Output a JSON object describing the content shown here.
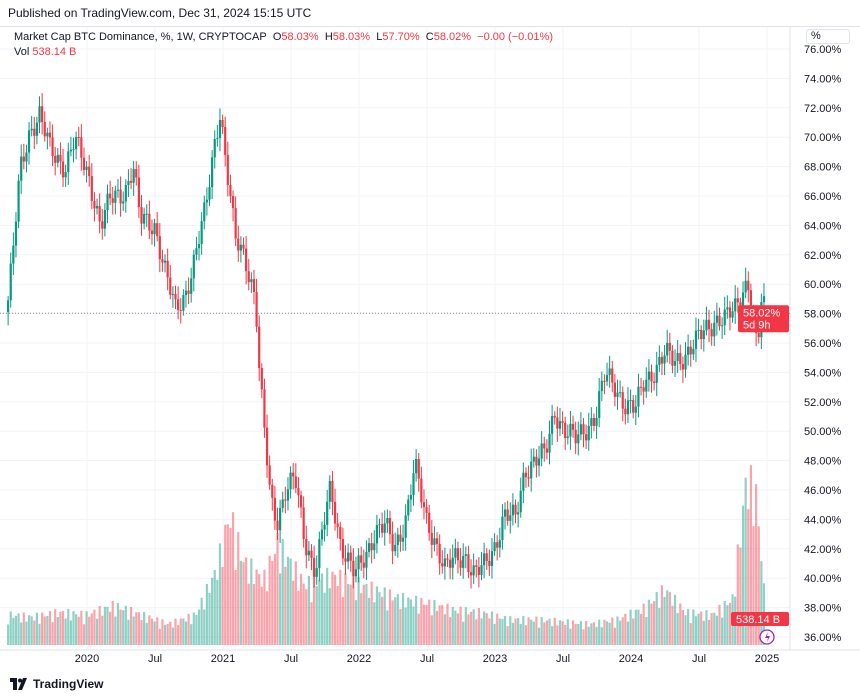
{
  "published": "Published on TradingView.com, Dec 31, 2024 15:15 UTC",
  "legend": {
    "title": "Market Cap BTC Dominance, %, 1W, CRYPTOCAP",
    "o_label": "O",
    "o": "58.03%",
    "h_label": "H",
    "h": "58.03%",
    "l_label": "L",
    "l": "57.70%",
    "c_label": "C",
    "c": "58.02%",
    "change": "−0.00 (−0.01%)",
    "vol_label": "Vol",
    "vol": "538.14 B"
  },
  "scale_mode": "%",
  "footer": "TradingView",
  "colors": {
    "up": "#089981",
    "down": "#f23645"
  },
  "chart_data": {
    "type": "candlestick",
    "title": "Market Cap BTC Dominance, %, 1W, CRYPTOCAP",
    "ylim": [
      36,
      76
    ],
    "y_ticks": [
      "76.00%",
      "74.00%",
      "72.00%",
      "70.00%",
      "68.00%",
      "66.00%",
      "64.00%",
      "62.00%",
      "60.00%",
      "58.00%",
      "56.00%",
      "54.00%",
      "52.00%",
      "50.00%",
      "48.00%",
      "46.00%",
      "44.00%",
      "42.00%",
      "40.00%",
      "38.00%",
      "36.00%"
    ],
    "x_ticks": [
      {
        "label": "2020",
        "t": 2020.0
      },
      {
        "label": "Jul",
        "t": 2020.5
      },
      {
        "label": "2021",
        "t": 2021.0
      },
      {
        "label": "Jul",
        "t": 2021.5
      },
      {
        "label": "2022",
        "t": 2022.0
      },
      {
        "label": "Jul",
        "t": 2022.5
      },
      {
        "label": "2023",
        "t": 2023.0
      },
      {
        "label": "Jul",
        "t": 2023.5
      },
      {
        "label": "2024",
        "t": 2024.0
      },
      {
        "label": "Jul",
        "t": 2024.5
      },
      {
        "label": "2025",
        "t": 2025.0
      }
    ],
    "last_price": "58.02%",
    "countdown": "5d 9h",
    "last_volume": "538.14 B",
    "close_keypoints": [
      [
        2019.42,
        58.9
      ],
      [
        2019.45,
        61.6
      ],
      [
        2019.51,
        67.8
      ],
      [
        2019.58,
        70.5
      ],
      [
        2019.65,
        71.5
      ],
      [
        2019.73,
        69.1
      ],
      [
        2019.84,
        68
      ],
      [
        2019.91,
        69.8
      ],
      [
        2020.02,
        67.1
      ],
      [
        2020.1,
        64
      ],
      [
        2020.17,
        65.7
      ],
      [
        2020.28,
        66.4
      ],
      [
        2020.34,
        68
      ],
      [
        2020.39,
        64.4
      ],
      [
        2020.5,
        64
      ],
      [
        2020.57,
        61
      ],
      [
        2020.65,
        58.2
      ],
      [
        2020.72,
        59.3
      ],
      [
        2020.79,
        61.6
      ],
      [
        2020.87,
        65
      ],
      [
        2020.94,
        69.8
      ],
      [
        2020.98,
        71.9
      ],
      [
        2021.01,
        69.1
      ],
      [
        2021.09,
        63
      ],
      [
        2021.16,
        62
      ],
      [
        2021.24,
        58.9
      ],
      [
        2021.27,
        53.5
      ],
      [
        2021.31,
        49.4
      ],
      [
        2021.35,
        45.3
      ],
      [
        2021.4,
        44
      ],
      [
        2021.46,
        46
      ],
      [
        2021.53,
        46.7
      ],
      [
        2021.6,
        42.6
      ],
      [
        2021.68,
        40.6
      ],
      [
        2021.79,
        46
      ],
      [
        2021.86,
        42.6
      ],
      [
        2021.97,
        40.2
      ],
      [
        2022.04,
        41.3
      ],
      [
        2022.12,
        43.3
      ],
      [
        2022.19,
        43.6
      ],
      [
        2022.26,
        41.9
      ],
      [
        2022.34,
        44
      ],
      [
        2022.41,
        47.7
      ],
      [
        2022.49,
        44
      ],
      [
        2022.56,
        42.6
      ],
      [
        2022.63,
        40.6
      ],
      [
        2022.71,
        41.3
      ],
      [
        2022.78,
        41.6
      ],
      [
        2022.85,
        40.2
      ],
      [
        2022.93,
        40.9
      ],
      [
        2023.0,
        42.3
      ],
      [
        2023.07,
        44.3
      ],
      [
        2023.15,
        44
      ],
      [
        2023.22,
        47.4
      ],
      [
        2023.29,
        48
      ],
      [
        2023.37,
        48.4
      ],
      [
        2023.44,
        51.4
      ],
      [
        2023.51,
        50.1
      ],
      [
        2023.59,
        49.4
      ],
      [
        2023.66,
        50.1
      ],
      [
        2023.74,
        51.1
      ],
      [
        2023.81,
        53.8
      ],
      [
        2023.88,
        53.1
      ],
      [
        2023.96,
        51.8
      ],
      [
        2024.03,
        51.4
      ],
      [
        2024.1,
        53.5
      ],
      [
        2024.18,
        54.2
      ],
      [
        2024.25,
        55.2
      ],
      [
        2024.32,
        54.8
      ],
      [
        2024.4,
        55.2
      ],
      [
        2024.47,
        55.9
      ],
      [
        2024.54,
        56.9
      ],
      [
        2024.62,
        57.6
      ],
      [
        2024.69,
        57.6
      ],
      [
        2024.76,
        58.2
      ],
      [
        2024.82,
        59.6
      ],
      [
        2024.86,
        60.3
      ],
      [
        2024.89,
        57.6
      ],
      [
        2024.93,
        55.5
      ],
      [
        2024.96,
        58.9
      ],
      [
        2024.99,
        58.02
      ]
    ],
    "volume_keypoints_B": [
      [
        2019.42,
        650
      ],
      [
        2019.6,
        600
      ],
      [
        2019.8,
        700
      ],
      [
        2020.0,
        650
      ],
      [
        2020.2,
        850
      ],
      [
        2020.4,
        650
      ],
      [
        2020.6,
        450
      ],
      [
        2020.8,
        650
      ],
      [
        2020.95,
        1600
      ],
      [
        2021.05,
        2800
      ],
      [
        2021.15,
        1800
      ],
      [
        2021.3,
        1400
      ],
      [
        2021.4,
        2200
      ],
      [
        2021.6,
        1300
      ],
      [
        2021.8,
        1500
      ],
      [
        2022.0,
        1300
      ],
      [
        2022.3,
        1000
      ],
      [
        2022.5,
        900
      ],
      [
        2022.7,
        750
      ],
      [
        2022.9,
        700
      ],
      [
        2023.1,
        550
      ],
      [
        2023.3,
        550
      ],
      [
        2023.5,
        500
      ],
      [
        2023.7,
        450
      ],
      [
        2023.9,
        550
      ],
      [
        2024.1,
        800
      ],
      [
        2024.25,
        1200
      ],
      [
        2024.4,
        700
      ],
      [
        2024.6,
        650
      ],
      [
        2024.75,
        1000
      ],
      [
        2024.85,
        3600
      ],
      [
        2024.92,
        3200
      ],
      [
        2024.97,
        1600
      ],
      [
        2024.99,
        538.14
      ]
    ]
  }
}
